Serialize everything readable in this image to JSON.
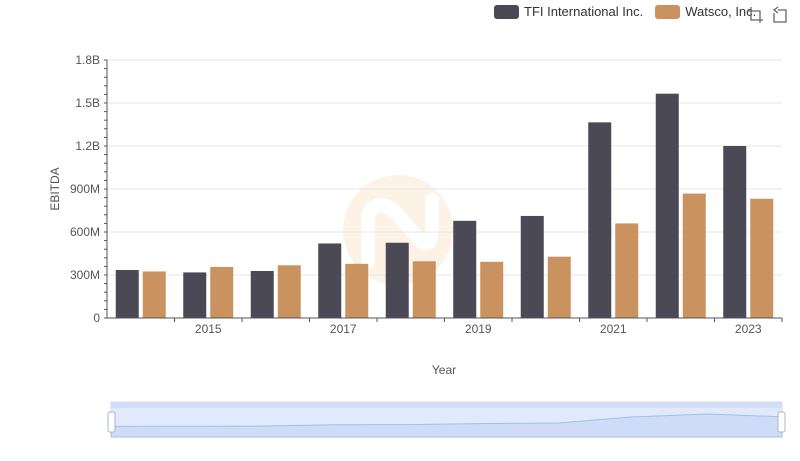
{
  "colors": {
    "tfi": "#4a4955",
    "watsco": "#c9925f"
  },
  "legend": {
    "tfi_label": "TFI International Inc.",
    "watsco_label": "Watsco, Inc."
  },
  "toolbox": {
    "zoom_icon": "zoom-icon",
    "restore_icon": "restore-icon"
  },
  "chart_data": {
    "type": "bar",
    "title": "",
    "xlabel": "Year",
    "ylabel": "EBITDA",
    "categories": [
      "2014",
      "2015",
      "2016",
      "2017",
      "2018",
      "2019",
      "2020",
      "2021",
      "2022",
      "2023"
    ],
    "xticks": [
      "2015",
      "2017",
      "2019",
      "2021",
      "2023"
    ],
    "yticks": [
      "0",
      "300M",
      "600M",
      "900M",
      "1.2B",
      "1.5B",
      "1.8B"
    ],
    "ylim": [
      0,
      1800000000
    ],
    "grid": true,
    "legend_position": "top-right",
    "series": [
      {
        "name": "TFI International Inc.",
        "values": [
          335000000,
          318000000,
          328000000,
          520000000,
          525000000,
          678000000,
          712000000,
          1365000000,
          1565000000,
          1200000000
        ]
      },
      {
        "name": "Watsco, Inc.",
        "values": [
          325000000,
          356000000,
          368000000,
          378000000,
          396000000,
          392000000,
          428000000,
          660000000,
          868000000,
          832000000
        ]
      }
    ]
  }
}
